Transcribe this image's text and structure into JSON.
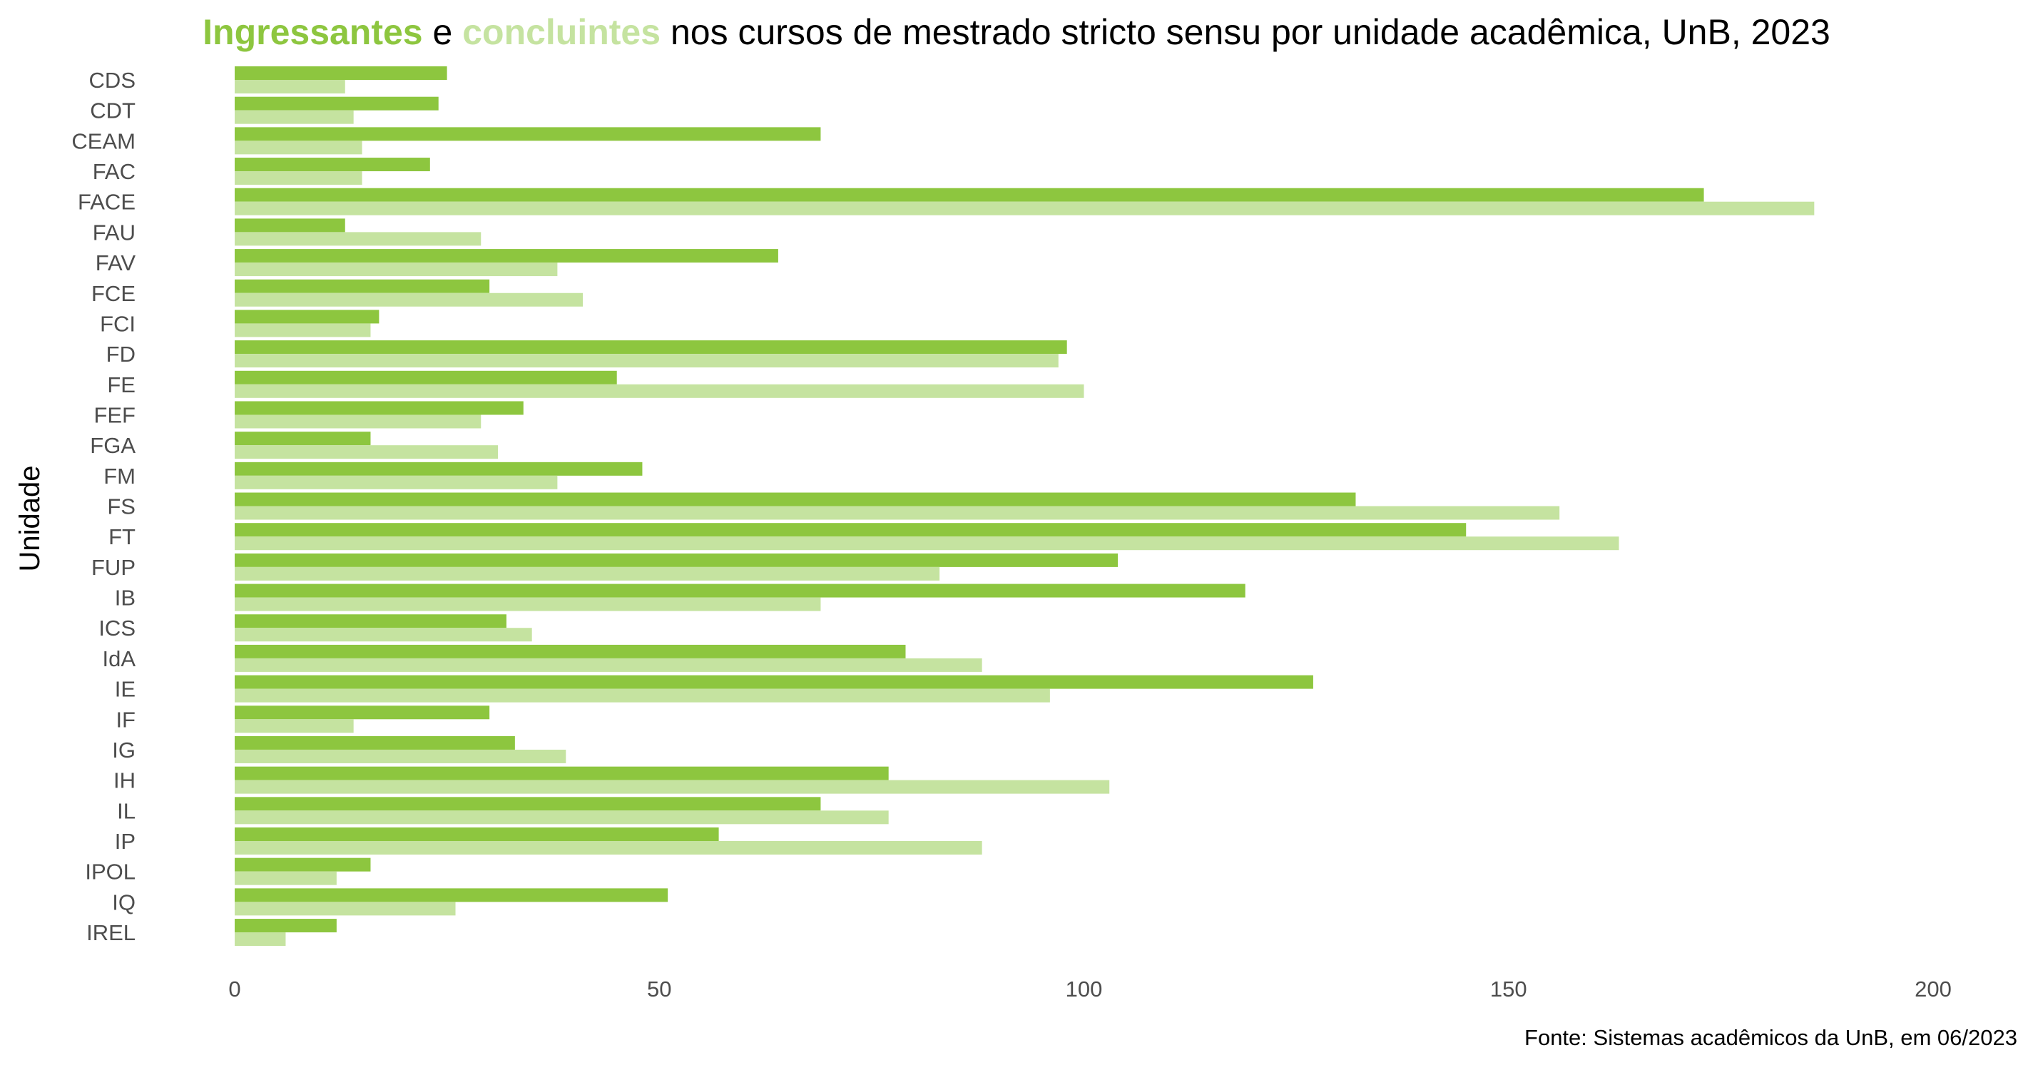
{
  "colors": {
    "ingressantes": "#8dc63f",
    "concluintes": "#c5e3a0",
    "text": "#000000",
    "tick_text": "#4d4d4d"
  },
  "chart_data": {
    "type": "bar",
    "orientation": "horizontal",
    "title": {
      "part1": "Ingressantes",
      "part2": " e ",
      "part3": "concluintes",
      "part4": " nos cursos de mestrado stricto sensu por unidade acadêmica, UnB, 2023"
    },
    "xlabel": "",
    "ylabel": "Unidade",
    "xlim": [
      0,
      200
    ],
    "xticks": [
      0,
      50,
      100,
      150,
      200
    ],
    "grid": false,
    "legend": "embedded in title colors",
    "caption": "Fonte: Sistemas acadêmicos da UnB, em 06/2023",
    "categories": [
      "CDS",
      "CDT",
      "CEAM",
      "FAC",
      "FACE",
      "FAU",
      "FAV",
      "FCE",
      "FCI",
      "FD",
      "FE",
      "FEF",
      "FGA",
      "FM",
      "FS",
      "FT",
      "FUP",
      "IB",
      "ICS",
      "IdA",
      "IE",
      "IF",
      "IG",
      "IH",
      "IL",
      "IP",
      "IPOL",
      "IQ",
      "IREL"
    ],
    "series": [
      {
        "name": "Ingressantes",
        "values": [
          25,
          24,
          69,
          23,
          173,
          13,
          64,
          30,
          17,
          98,
          45,
          34,
          16,
          48,
          132,
          145,
          104,
          119,
          32,
          79,
          127,
          30,
          33,
          77,
          69,
          57,
          16,
          51,
          12
        ]
      },
      {
        "name": "Concluintes",
        "values": [
          13,
          14,
          15,
          15,
          186,
          29,
          38,
          41,
          16,
          97,
          100,
          29,
          31,
          38,
          156,
          163,
          83,
          69,
          35,
          88,
          96,
          14,
          39,
          103,
          77,
          88,
          12,
          26,
          6
        ]
      }
    ]
  }
}
